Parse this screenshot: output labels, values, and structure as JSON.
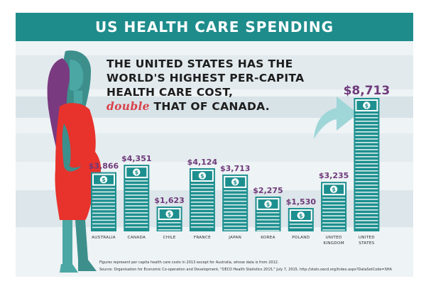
{
  "header": {
    "title": "US HEALTH CARE SPENDING"
  },
  "headline": {
    "line1": "THE UNITED STATES HAS THE",
    "line2": "WORLD'S HIGHEST PER-CAPITA",
    "line3": "HEALTH CARE COST,",
    "accent": "double",
    "line4_rest": " THAT OF CANADA."
  },
  "colors": {
    "header_bg": "#1f8c8c",
    "bar_teal": "#1d8f8f",
    "value_label": "#6e3a7a",
    "accent_red": "#d9434b",
    "figure_dress": "#e8322c",
    "figure_hair": "#7a3a80",
    "figure_skin": "#4ba7a4"
  },
  "icons": {
    "bar_top": "dollar-bill-icon",
    "arrow": "up-arrow-icon",
    "figure": "pregnant-woman-icon"
  },
  "chart_data": {
    "type": "bar",
    "title": "US HEALTH CARE SPENDING",
    "categories": [
      "AUSTRALIA",
      "CANADA",
      "CHILE",
      "FRANCE",
      "JAPAN",
      "KOREA",
      "POLAND",
      "UNITED KINGDOM",
      "UNITED STATES"
    ],
    "category_lines": [
      [
        "AUSTRALIA"
      ],
      [
        "CANADA"
      ],
      [
        "CHILE"
      ],
      [
        "FRANCE"
      ],
      [
        "JAPAN"
      ],
      [
        "KOREA"
      ],
      [
        "POLAND"
      ],
      [
        "UNITED",
        "KINGDOM"
      ],
      [
        "UNITED",
        "STATES"
      ]
    ],
    "values": [
      3866,
      4351,
      1623,
      4124,
      3713,
      2275,
      1530,
      3235,
      8713
    ],
    "value_labels": [
      "$3,866",
      "$4,351",
      "$1,623",
      "$4,124",
      "$3,713",
      "$2,275",
      "$1,530",
      "$3,235",
      "$8,713"
    ],
    "xlabel": "",
    "ylabel": "",
    "ylim": [
      0,
      8713
    ],
    "grid": false,
    "legend": "none"
  },
  "footnote": "Figures represent per capita health care costs in 2013 except for Australia, whose data is from 2012.",
  "source": "Source: Organisation for Economic Co-operation and Development, \"OECD Health Statistics 2015,\" July 7, 2015, http://stats.oecd.org/Index.aspx?DataSetCode=SHA"
}
